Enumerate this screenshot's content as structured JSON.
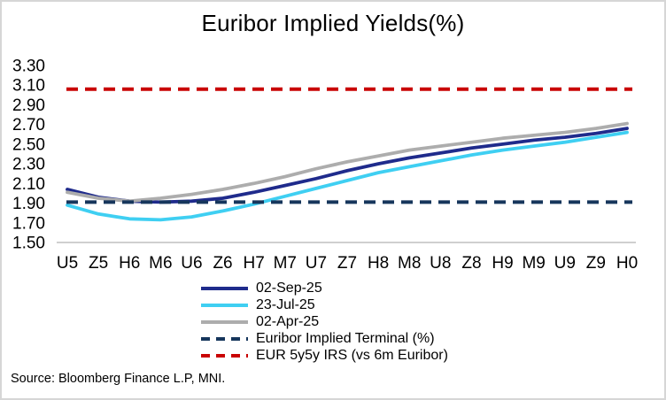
{
  "chart_data": {
    "type": "line",
    "title": "Euribor Implied Yields(%)",
    "categories": [
      "U5",
      "Z5",
      "H6",
      "M6",
      "U6",
      "Z6",
      "H7",
      "M7",
      "U7",
      "Z7",
      "H8",
      "M8",
      "U8",
      "Z8",
      "H9",
      "M9",
      "U9",
      "Z9",
      "H0"
    ],
    "series": [
      {
        "name": "02-Sep-25",
        "color": "#1F2B8C",
        "style": "solid",
        "values": [
          2.04,
          1.96,
          1.92,
          1.91,
          1.92,
          1.95,
          2.01,
          2.08,
          2.15,
          2.23,
          2.3,
          2.36,
          2.41,
          2.46,
          2.5,
          2.54,
          2.57,
          2.61,
          2.66
        ]
      },
      {
        "name": "23-Jul-25",
        "color": "#3FCFF2",
        "style": "solid",
        "values": [
          1.88,
          1.79,
          1.74,
          1.73,
          1.76,
          1.82,
          1.89,
          1.97,
          2.05,
          2.13,
          2.21,
          2.27,
          2.33,
          2.39,
          2.44,
          2.48,
          2.52,
          2.57,
          2.62
        ]
      },
      {
        "name": "02-Apr-25",
        "color": "#ADADAD",
        "style": "solid",
        "values": [
          2.01,
          1.95,
          1.92,
          1.95,
          1.99,
          2.04,
          2.1,
          2.17,
          2.25,
          2.32,
          2.38,
          2.44,
          2.48,
          2.52,
          2.56,
          2.59,
          2.62,
          2.66,
          2.71
        ]
      },
      {
        "name": "Euribor Implied Terminal (%)",
        "color": "#16365C",
        "style": "dashed",
        "value": 1.91
      },
      {
        "name": "EUR 5y5y IRS (vs 6m Euribor)",
        "color": "#C90202",
        "style": "dashed",
        "value": 3.06
      }
    ],
    "yticks": [
      "3.30",
      "3.10",
      "2.90",
      "2.70",
      "2.50",
      "2.30",
      "2.10",
      "1.90",
      "1.70",
      "1.50"
    ],
    "ylim": [
      1.5,
      3.3
    ],
    "grid": false,
    "legend_position": "bottom",
    "axis_line_color": "#BFBFBF",
    "text_color": "#000000"
  },
  "source": "Source: Bloomberg Finance L.P, MNI."
}
